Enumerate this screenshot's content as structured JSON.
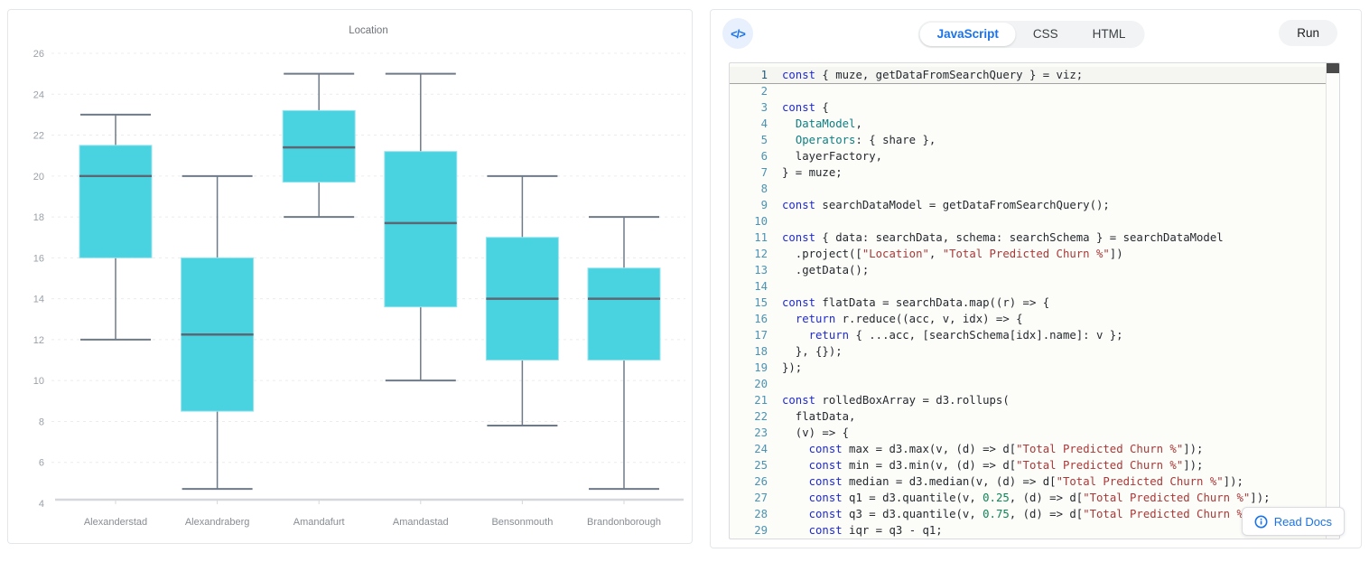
{
  "chart_data": {
    "type": "boxplot",
    "title": "Location",
    "xlabel": "",
    "ylabel": "",
    "ylim": [
      4,
      26
    ],
    "yticks": [
      4,
      6,
      8,
      10,
      12,
      14,
      16,
      18,
      20,
      22,
      24,
      26
    ],
    "grid": "dashed-horizontal",
    "categories": [
      "Alexanderstad",
      "Alexandraberg",
      "Amandafurt",
      "Amandastad",
      "Bensonmouth",
      "Brandonborough"
    ],
    "series": [
      {
        "category": "Alexanderstad",
        "min": 12,
        "q1": 16,
        "median": 20,
        "q3": 21.5,
        "max": 23
      },
      {
        "category": "Alexandraberg",
        "min": 4.7,
        "q1": 8.5,
        "median": 12.25,
        "q3": 16,
        "max": 20
      },
      {
        "category": "Amandafurt",
        "min": 18,
        "q1": 19.7,
        "median": 21.4,
        "q3": 23.2,
        "max": 25
      },
      {
        "category": "Amandastad",
        "min": 10,
        "q1": 13.6,
        "median": 17.7,
        "q3": 21.2,
        "max": 25
      },
      {
        "category": "Bensonmouth",
        "min": 7.8,
        "q1": 11,
        "median": 14,
        "q3": 17,
        "max": 20
      },
      {
        "category": "Brandonborough",
        "min": 4.7,
        "q1": 11,
        "median": 14,
        "q3": 15.5,
        "max": 18
      }
    ],
    "box_fill": "#49d2e0",
    "box_edge": "#9be4ee",
    "whisker_color": "#6f7a88",
    "median_color": "#5d6673",
    "axis_color": "#d5d7da",
    "grid_color": "#ececec",
    "tick_label_color": "#9aa1a8",
    "category_label_color": "#878d94",
    "title_color": "#6e737c"
  },
  "editor": {
    "icon": "</>",
    "tabs": [
      {
        "label": "JavaScript",
        "active": true
      },
      {
        "label": "CSS",
        "active": false
      },
      {
        "label": "HTML",
        "active": false
      }
    ],
    "run_label": "Run",
    "read_docs_label": "Read Docs",
    "accent_color": "#1a73e8",
    "active_line": 1,
    "code_lines": [
      [
        [
          "k",
          "const"
        ],
        [
          "p",
          " { muze, getDataFromSearchQuery } = viz;"
        ]
      ],
      [],
      [
        [
          "k",
          "const"
        ],
        [
          "p",
          " {"
        ]
      ],
      [
        [
          "p",
          "  "
        ],
        [
          "d",
          "DataModel"
        ],
        [
          "p",
          ","
        ]
      ],
      [
        [
          "p",
          "  "
        ],
        [
          "d",
          "Operators"
        ],
        [
          "p",
          ": { share },"
        ]
      ],
      [
        [
          "p",
          "  layerFactory,"
        ]
      ],
      [
        [
          "p",
          "} = muze;"
        ]
      ],
      [],
      [
        [
          "k",
          "const"
        ],
        [
          "p",
          " searchDataModel = getDataFromSearchQuery();"
        ]
      ],
      [],
      [
        [
          "k",
          "const"
        ],
        [
          "p",
          " { data: searchData, schema: searchSchema } = searchDataModel"
        ]
      ],
      [
        [
          "p",
          "  .project(["
        ],
        [
          "s",
          "\"Location\""
        ],
        [
          "p",
          ", "
        ],
        [
          "s",
          "\"Total Predicted Churn %\""
        ],
        [
          "p",
          "])"
        ]
      ],
      [
        [
          "p",
          "  .getData();"
        ]
      ],
      [],
      [
        [
          "k",
          "const"
        ],
        [
          "p",
          " flatData = searchData.map((r) => {"
        ]
      ],
      [
        [
          "p",
          "  "
        ],
        [
          "k",
          "return"
        ],
        [
          "p",
          " r.reduce((acc, v, idx) => {"
        ]
      ],
      [
        [
          "p",
          "    "
        ],
        [
          "k",
          "return"
        ],
        [
          "p",
          " { ...acc, [searchSchema[idx].name]: v };"
        ]
      ],
      [
        [
          "p",
          "  }, {});"
        ]
      ],
      [
        [
          "p",
          "});"
        ]
      ],
      [],
      [
        [
          "k",
          "const"
        ],
        [
          "p",
          " rolledBoxArray = d3.rollups("
        ]
      ],
      [
        [
          "p",
          "  flatData,"
        ]
      ],
      [
        [
          "p",
          "  (v) => {"
        ]
      ],
      [
        [
          "p",
          "    "
        ],
        [
          "k",
          "const"
        ],
        [
          "p",
          " max = d3.max(v, (d) => d["
        ],
        [
          "s",
          "\"Total Predicted Churn %\""
        ],
        [
          "p",
          "]);"
        ]
      ],
      [
        [
          "p",
          "    "
        ],
        [
          "k",
          "const"
        ],
        [
          "p",
          " min = d3.min(v, (d) => d["
        ],
        [
          "s",
          "\"Total Predicted Churn %\""
        ],
        [
          "p",
          "]);"
        ]
      ],
      [
        [
          "p",
          "    "
        ],
        [
          "k",
          "const"
        ],
        [
          "p",
          " median = d3.median(v, (d) => d["
        ],
        [
          "s",
          "\"Total Predicted Churn %\""
        ],
        [
          "p",
          "]);"
        ]
      ],
      [
        [
          "p",
          "    "
        ],
        [
          "k",
          "const"
        ],
        [
          "p",
          " q1 = d3.quantile(v, "
        ],
        [
          "n",
          "0.25"
        ],
        [
          "p",
          ", (d) => d["
        ],
        [
          "s",
          "\"Total Predicted Churn %\""
        ],
        [
          "p",
          "]);"
        ]
      ],
      [
        [
          "p",
          "    "
        ],
        [
          "k",
          "const"
        ],
        [
          "p",
          " q3 = d3.quantile(v, "
        ],
        [
          "n",
          "0.75"
        ],
        [
          "p",
          ", (d) => d["
        ],
        [
          "s",
          "\"Total Predicted Churn %\""
        ],
        [
          "p",
          "])"
        ]
      ],
      [
        [
          "p",
          "    "
        ],
        [
          "k",
          "const"
        ],
        [
          "p",
          " iqr = q3 - q1;"
        ]
      ]
    ]
  }
}
